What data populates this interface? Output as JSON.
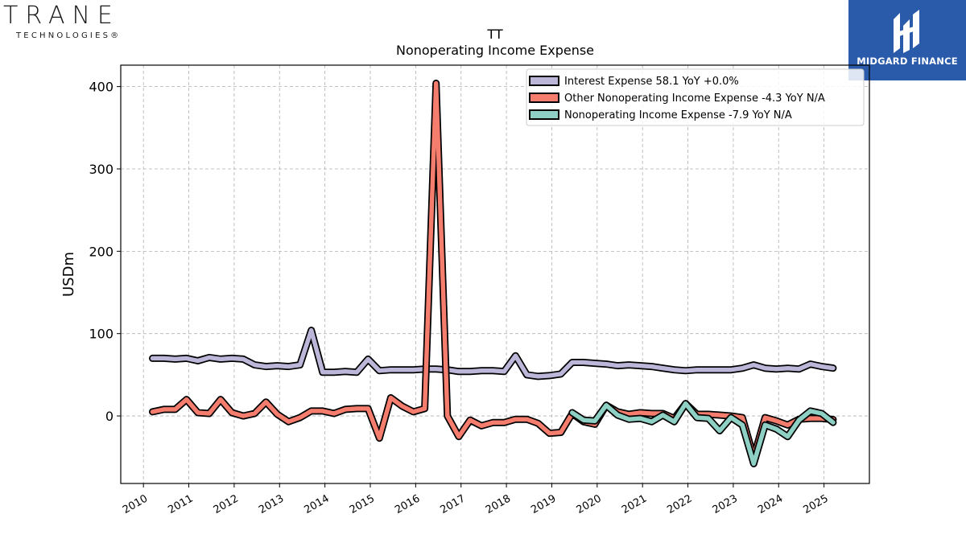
{
  "brand_left": {
    "name": "TRANE",
    "sub": "TECHNOLOGIES",
    "mark": "®"
  },
  "brand_right": {
    "name": "MIDGARD FINANCE"
  },
  "colors": {
    "interest": "#bcb7d9",
    "other": "#f47d6d",
    "nonop": "#8fd0c4",
    "outline": "#000000"
  },
  "chart_data": {
    "type": "line",
    "title": "TT",
    "subtitle": "Nonoperating Income Expense",
    "ylabel": "USDm",
    "xlabel": "",
    "ylim": [
      -82,
      426
    ],
    "xlim": [
      2009.5,
      2026.0
    ],
    "yticks": [
      0,
      100,
      200,
      300,
      400
    ],
    "xticks": [
      2010,
      2011,
      2012,
      2013,
      2014,
      2015,
      2016,
      2017,
      2018,
      2019,
      2020,
      2021,
      2022,
      2023,
      2024,
      2025
    ],
    "grid": true,
    "legend_position": "top-right",
    "series": [
      {
        "name": "Interest Expense  58.1 YoY +0.0%",
        "color_key": "interest",
        "points": [
          [
            2010.2,
            70
          ],
          [
            2010.45,
            70
          ],
          [
            2010.7,
            69
          ],
          [
            2010.95,
            70
          ],
          [
            2011.2,
            67
          ],
          [
            2011.45,
            71
          ],
          [
            2011.7,
            69
          ],
          [
            2011.95,
            70
          ],
          [
            2012.2,
            69
          ],
          [
            2012.45,
            62
          ],
          [
            2012.7,
            60
          ],
          [
            2012.95,
            61
          ],
          [
            2013.2,
            60
          ],
          [
            2013.45,
            62
          ],
          [
            2013.7,
            104
          ],
          [
            2013.95,
            53
          ],
          [
            2014.2,
            53
          ],
          [
            2014.45,
            54
          ],
          [
            2014.7,
            53
          ],
          [
            2014.95,
            69
          ],
          [
            2015.2,
            55
          ],
          [
            2015.45,
            56
          ],
          [
            2015.7,
            56
          ],
          [
            2015.95,
            56
          ],
          [
            2016.2,
            57
          ],
          [
            2016.45,
            57
          ],
          [
            2016.7,
            56
          ],
          [
            2016.95,
            54
          ],
          [
            2017.2,
            54
          ],
          [
            2017.45,
            55
          ],
          [
            2017.7,
            55
          ],
          [
            2017.95,
            54
          ],
          [
            2018.2,
            73
          ],
          [
            2018.45,
            50
          ],
          [
            2018.7,
            48
          ],
          [
            2018.95,
            49
          ],
          [
            2019.2,
            51
          ],
          [
            2019.45,
            65
          ],
          [
            2019.7,
            65
          ],
          [
            2019.95,
            64
          ],
          [
            2020.2,
            63
          ],
          [
            2020.45,
            61
          ],
          [
            2020.7,
            62
          ],
          [
            2020.95,
            61
          ],
          [
            2021.2,
            60
          ],
          [
            2021.45,
            58
          ],
          [
            2021.7,
            56
          ],
          [
            2021.95,
            55
          ],
          [
            2022.2,
            56
          ],
          [
            2022.45,
            56
          ],
          [
            2022.7,
            56
          ],
          [
            2022.95,
            56
          ],
          [
            2023.2,
            58
          ],
          [
            2023.45,
            62
          ],
          [
            2023.7,
            58
          ],
          [
            2023.95,
            57
          ],
          [
            2024.2,
            58
          ],
          [
            2024.45,
            57
          ],
          [
            2024.7,
            63
          ],
          [
            2024.95,
            60
          ],
          [
            2025.2,
            58.1
          ]
        ]
      },
      {
        "name": "Other Nonoperating Income Expense  -4.3 YoY N/A",
        "color_key": "other",
        "points": [
          [
            2010.2,
            5
          ],
          [
            2010.45,
            8
          ],
          [
            2010.7,
            8
          ],
          [
            2010.95,
            20
          ],
          [
            2011.2,
            4
          ],
          [
            2011.45,
            3
          ],
          [
            2011.7,
            20
          ],
          [
            2011.95,
            4
          ],
          [
            2012.2,
            0
          ],
          [
            2012.45,
            3
          ],
          [
            2012.7,
            17
          ],
          [
            2012.95,
            2
          ],
          [
            2013.2,
            -7
          ],
          [
            2013.45,
            -2
          ],
          [
            2013.7,
            6
          ],
          [
            2013.95,
            6
          ],
          [
            2014.2,
            3
          ],
          [
            2014.45,
            8
          ],
          [
            2014.7,
            9
          ],
          [
            2014.95,
            9
          ],
          [
            2015.2,
            -27
          ],
          [
            2015.45,
            22
          ],
          [
            2015.7,
            12
          ],
          [
            2015.95,
            5
          ],
          [
            2016.2,
            9
          ],
          [
            2016.45,
            404
          ],
          [
            2016.7,
            0
          ],
          [
            2016.95,
            -25
          ],
          [
            2017.2,
            -5
          ],
          [
            2017.45,
            -12
          ],
          [
            2017.7,
            -8
          ],
          [
            2017.95,
            -8
          ],
          [
            2018.2,
            -4
          ],
          [
            2018.45,
            -4
          ],
          [
            2018.7,
            -9
          ],
          [
            2018.95,
            -21
          ],
          [
            2019.2,
            -20
          ],
          [
            2019.45,
            3
          ],
          [
            2019.7,
            -7
          ],
          [
            2019.95,
            -10
          ],
          [
            2020.2,
            13
          ],
          [
            2020.45,
            5
          ],
          [
            2020.7,
            2
          ],
          [
            2020.95,
            4
          ],
          [
            2021.2,
            3
          ],
          [
            2021.45,
            3
          ],
          [
            2021.7,
            -3
          ],
          [
            2021.95,
            15
          ],
          [
            2022.2,
            2
          ],
          [
            2022.45,
            2
          ],
          [
            2022.7,
            1
          ],
          [
            2022.95,
            0
          ],
          [
            2023.2,
            -2
          ],
          [
            2023.45,
            -50
          ],
          [
            2023.7,
            -2
          ],
          [
            2023.95,
            -6
          ],
          [
            2024.2,
            -11
          ],
          [
            2024.45,
            -4
          ],
          [
            2024.7,
            -3
          ],
          [
            2024.95,
            -3
          ],
          [
            2025.2,
            -4.3
          ]
        ]
      },
      {
        "name": "Nonoperating Income Expense  -7.9 YoY N/A",
        "color_key": "nonop",
        "points": [
          [
            2019.45,
            4
          ],
          [
            2019.7,
            -5
          ],
          [
            2019.95,
            -6
          ],
          [
            2020.2,
            13
          ],
          [
            2020.45,
            1
          ],
          [
            2020.7,
            -4
          ],
          [
            2020.95,
            -3
          ],
          [
            2021.2,
            -7
          ],
          [
            2021.45,
            1
          ],
          [
            2021.7,
            -7
          ],
          [
            2021.95,
            15
          ],
          [
            2022.2,
            -2
          ],
          [
            2022.45,
            -3
          ],
          [
            2022.7,
            -18
          ],
          [
            2022.95,
            -2
          ],
          [
            2023.2,
            -11
          ],
          [
            2023.45,
            -58
          ],
          [
            2023.7,
            -11
          ],
          [
            2023.95,
            -16
          ],
          [
            2024.2,
            -25
          ],
          [
            2024.45,
            -5
          ],
          [
            2024.7,
            6
          ],
          [
            2024.95,
            3
          ],
          [
            2025.2,
            -7.9
          ]
        ]
      }
    ]
  }
}
